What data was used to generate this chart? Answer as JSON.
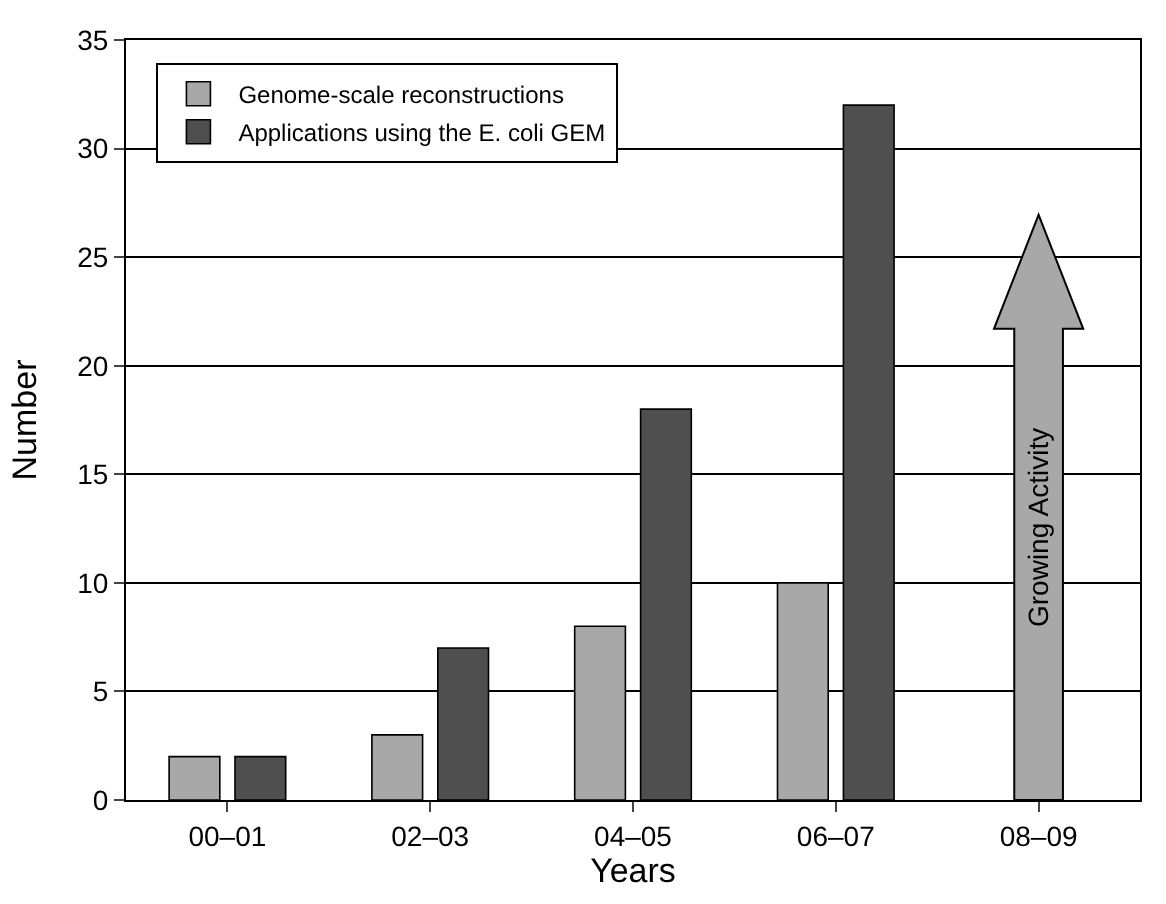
{
  "chart_data": {
    "type": "bar",
    "xlabel": "Years",
    "ylabel": "Number",
    "categories": [
      "00–01",
      "02–03",
      "04–05",
      "06–07",
      "08–09"
    ],
    "series": [
      {
        "name": "Genome-scale reconstructions",
        "color": "#a8a8a8",
        "values": [
          2,
          3,
          8,
          10,
          null
        ]
      },
      {
        "name": "Applications using the E. coli GEM",
        "color": "#4f4f4f",
        "values": [
          2,
          7,
          18,
          32,
          null
        ]
      }
    ],
    "ylim": [
      0,
      35
    ],
    "yticks": [
      0,
      5,
      10,
      15,
      20,
      25,
      30,
      35
    ],
    "grid": "y",
    "legend": "top left",
    "annotations": [
      "Growing Activity"
    ]
  }
}
